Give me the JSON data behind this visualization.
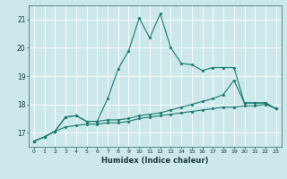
{
  "xlabel": "Humidex (Indice chaleur)",
  "background_color": "#cce8ea",
  "grid_color": "#ffffff",
  "line_color": "#1a7a6e",
  "xlim": [
    -0.5,
    23.5
  ],
  "ylim": [
    16.5,
    21.5
  ],
  "yticks": [
    17,
    18,
    19,
    20,
    21
  ],
  "xticks": [
    0,
    1,
    2,
    3,
    4,
    5,
    6,
    7,
    8,
    9,
    10,
    11,
    12,
    13,
    14,
    15,
    16,
    17,
    18,
    19,
    20,
    21,
    22,
    23
  ],
  "hours": [
    0,
    1,
    2,
    3,
    4,
    5,
    6,
    7,
    8,
    9,
    10,
    11,
    12,
    13,
    14,
    15,
    16,
    17,
    18,
    19,
    20,
    21,
    22,
    23
  ],
  "line1": [
    16.7,
    16.85,
    17.05,
    17.2,
    17.25,
    17.3,
    17.3,
    17.35,
    17.35,
    17.4,
    17.5,
    17.55,
    17.6,
    17.65,
    17.7,
    17.75,
    17.8,
    17.85,
    17.9,
    17.9,
    17.95,
    17.95,
    18.0,
    17.85
  ],
  "line2": [
    16.7,
    16.85,
    17.05,
    17.55,
    17.6,
    17.4,
    17.4,
    17.45,
    17.45,
    17.5,
    17.6,
    17.65,
    17.7,
    17.8,
    17.9,
    18.0,
    18.1,
    18.2,
    18.35,
    18.85,
    18.05,
    18.05,
    18.05,
    17.85
  ],
  "line3": [
    16.7,
    16.85,
    17.05,
    17.55,
    17.6,
    17.4,
    17.4,
    18.2,
    19.25,
    19.9,
    21.05,
    20.35,
    21.2,
    20.0,
    19.45,
    19.4,
    19.2,
    19.3,
    19.3,
    19.3,
    18.05,
    18.05,
    18.05,
    17.85
  ]
}
